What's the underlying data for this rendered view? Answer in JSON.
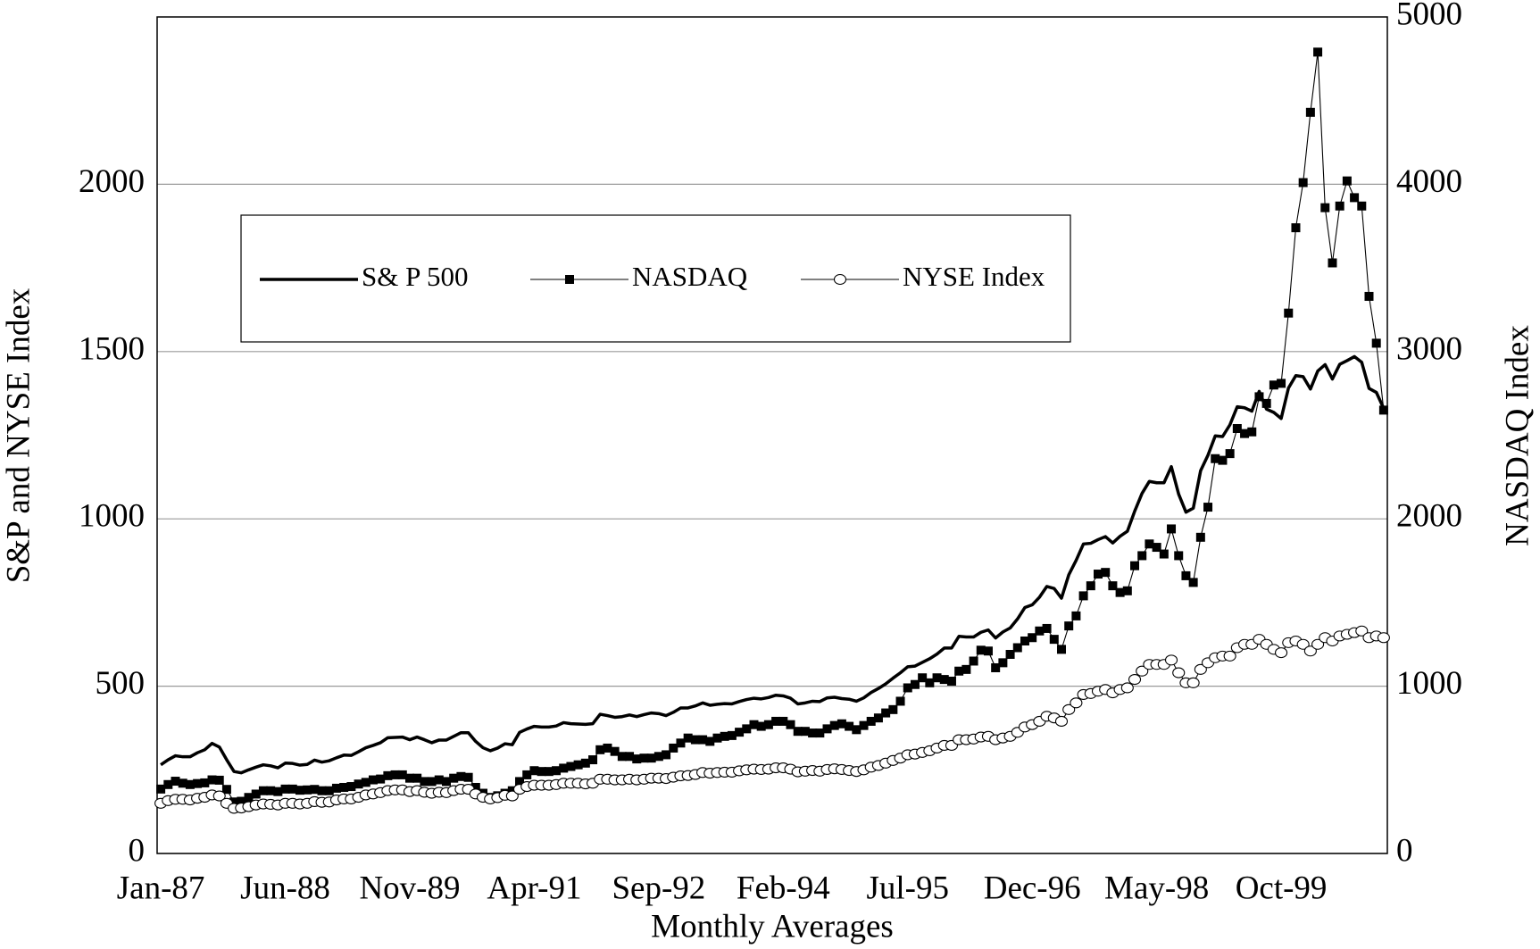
{
  "chart_data": {
    "type": "line",
    "xlabel": "Monthly Averages",
    "ylabel": "S&P and NYSE Index",
    "y2label": "NASDAQ Index",
    "categories": [
      "Jan-87",
      null,
      null,
      null,
      null,
      null,
      null,
      null,
      null,
      null,
      null,
      null,
      null,
      null,
      null,
      null,
      null,
      "Jun-88",
      null,
      null,
      null,
      null,
      null,
      null,
      null,
      null,
      null,
      null,
      null,
      null,
      null,
      null,
      null,
      null,
      "Nov-89",
      null,
      null,
      null,
      null,
      null,
      null,
      null,
      null,
      null,
      null,
      null,
      null,
      null,
      null,
      null,
      null,
      "Apr-91",
      null,
      null,
      null,
      null,
      null,
      null,
      null,
      null,
      null,
      null,
      null,
      null,
      null,
      null,
      null,
      null,
      "Sep-92",
      null,
      null,
      null,
      null,
      null,
      null,
      null,
      null,
      null,
      null,
      null,
      null,
      null,
      null,
      null,
      null,
      "Feb-94",
      null,
      null,
      null,
      null,
      null,
      null,
      null,
      null,
      null,
      null,
      null,
      null,
      null,
      null,
      null,
      null,
      "Jul-95",
      null,
      null,
      null,
      null,
      null,
      null,
      null,
      null,
      null,
      null,
      null,
      null,
      null,
      null,
      null,
      null,
      "Dec-96",
      null,
      null,
      null,
      null,
      null,
      null,
      null,
      null,
      null,
      null,
      null,
      null,
      null,
      null,
      null,
      null,
      "May-98",
      null,
      null,
      null,
      null,
      null,
      null,
      null,
      null,
      null,
      null,
      null,
      null,
      null,
      null,
      null,
      null,
      "Oct-99",
      null,
      null,
      null,
      null,
      null,
      null,
      null,
      null,
      null,
      null,
      null,
      null,
      null,
      null
    ],
    "ylim": [
      0,
      2500
    ],
    "yticks": [
      0,
      500,
      1000,
      1500,
      2000
    ],
    "y2lim": [
      0,
      5000
    ],
    "y2ticks": [
      0,
      1000,
      2000,
      3000,
      4000,
      5000
    ],
    "grid": true,
    "legend": "top-left",
    "series": [
      {
        "name": "S& P 500",
        "color": "#000000",
        "marker": "none",
        "values": [
          265,
          280,
          292,
          289,
          289,
          301,
          310,
          329,
          318,
          280,
          245,
          241,
          250,
          258,
          265,
          262,
          256,
          270,
          269,
          264,
          266,
          279,
          273,
          277,
          286,
          294,
          293,
          304,
          316,
          323,
          331,
          346,
          347,
          348,
          340,
          348,
          340,
          331,
          339,
          339,
          350,
          361,
          361,
          335,
          316,
          307,
          315,
          328,
          325,
          362,
          372,
          380,
          378,
          378,
          381,
          391,
          388,
          387,
          386,
          388,
          416,
          412,
          407,
          409,
          414,
          409,
          415,
          420,
          418,
          412,
          422,
          435,
          435,
          441,
          450,
          443,
          446,
          448,
          447,
          454,
          460,
          464,
          462,
          466,
          473,
          471,
          464,
          447,
          450,
          455,
          454,
          465,
          467,
          463,
          461,
          455,
          465,
          481,
          493,
          507,
          524,
          540,
          558,
          560,
          571,
          582,
          596,
          614,
          614,
          649,
          647,
          647,
          661,
          668,
          644,
          662,
          674,
          701,
          735,
          743,
          766,
          798,
          792,
          763,
          833,
          876,
          925,
          927,
          938,
          947,
          928,
          948,
          963,
          1023,
          1076,
          1112,
          1108,
          1108,
          1156,
          1074,
          1020,
          1032,
          1144,
          1190,
          1248,
          1246,
          1281,
          1335,
          1332,
          1322,
          1381,
          1328,
          1318,
          1300,
          1391,
          1428,
          1425,
          1388,
          1442,
          1461,
          1418,
          1462,
          1473,
          1485,
          1468,
          1390,
          1378,
          1330
        ]
      },
      {
        "name": "NASDAQ",
        "color": "#000000",
        "marker": "square",
        "axis": "y2",
        "values": [
          385,
          412,
          432,
          420,
          412,
          418,
          422,
          440,
          438,
          383,
          308,
          312,
          335,
          355,
          375,
          375,
          370,
          385,
          385,
          378,
          380,
          383,
          375,
          375,
          390,
          395,
          400,
          415,
          425,
          440,
          445,
          465,
          470,
          470,
          450,
          450,
          430,
          430,
          440,
          430,
          450,
          460,
          455,
          395,
          360,
          335,
          345,
          360,
          375,
          430,
          470,
          495,
          490,
          490,
          495,
          510,
          520,
          530,
          540,
          560,
          620,
          630,
          610,
          580,
          580,
          565,
          570,
          570,
          580,
          590,
          630,
          660,
          690,
          680,
          680,
          670,
          690,
          700,
          705,
          725,
          745,
          770,
          760,
          770,
          790,
          790,
          770,
          730,
          730,
          720,
          720,
          745,
          765,
          775,
          760,
          740,
          765,
          790,
          810,
          840,
          860,
          910,
          990,
          1010,
          1050,
          1020,
          1050,
          1040,
          1030,
          1090,
          1100,
          1150,
          1215,
          1210,
          1110,
          1140,
          1190,
          1230,
          1270,
          1290,
          1330,
          1345,
          1280,
          1220,
          1360,
          1420,
          1540,
          1600,
          1670,
          1680,
          1600,
          1560,
          1570,
          1720,
          1780,
          1850,
          1830,
          1790,
          1940,
          1780,
          1660,
          1620,
          1890,
          2070,
          2360,
          2350,
          2390,
          2540,
          2510,
          2520,
          2730,
          2690,
          2800,
          2810,
          3230,
          3740,
          4010,
          4430,
          4790,
          3860,
          3530,
          3870,
          4020,
          3920,
          3870,
          3330,
          3050,
          2650
        ]
      },
      {
        "name": "NYSE Index",
        "color": "#000000",
        "marker": "circle",
        "values": [
          150,
          158,
          162,
          162,
          160,
          165,
          168,
          175,
          172,
          150,
          135,
          136,
          140,
          145,
          148,
          147,
          145,
          150,
          150,
          148,
          150,
          155,
          153,
          154,
          160,
          163,
          163,
          168,
          175,
          178,
          182,
          188,
          190,
          190,
          185,
          188,
          183,
          180,
          183,
          182,
          188,
          192,
          192,
          178,
          168,
          163,
          167,
          174,
          172,
          192,
          200,
          204,
          204,
          204,
          206,
          210,
          210,
          210,
          208,
          210,
          222,
          222,
          220,
          220,
          222,
          220,
          222,
          225,
          225,
          224,
          228,
          232,
          233,
          236,
          242,
          240,
          242,
          243,
          243,
          247,
          250,
          252,
          251,
          252,
          256,
          256,
          252,
          244,
          246,
          248,
          246,
          251,
          253,
          251,
          248,
          245,
          250,
          258,
          263,
          270,
          278,
          285,
          295,
          297,
          302,
          307,
          315,
          323,
          323,
          340,
          340,
          342,
          348,
          350,
          340,
          345,
          350,
          362,
          378,
          385,
          395,
          410,
          405,
          395,
          430,
          450,
          475,
          478,
          485,
          490,
          480,
          490,
          495,
          520,
          545,
          565,
          565,
          565,
          578,
          540,
          510,
          510,
          550,
          570,
          585,
          590,
          590,
          615,
          625,
          625,
          640,
          625,
          610,
          600,
          630,
          635,
          625,
          605,
          625,
          645,
          635,
          650,
          655,
          660,
          665,
          645,
          650,
          645
        ]
      }
    ]
  }
}
